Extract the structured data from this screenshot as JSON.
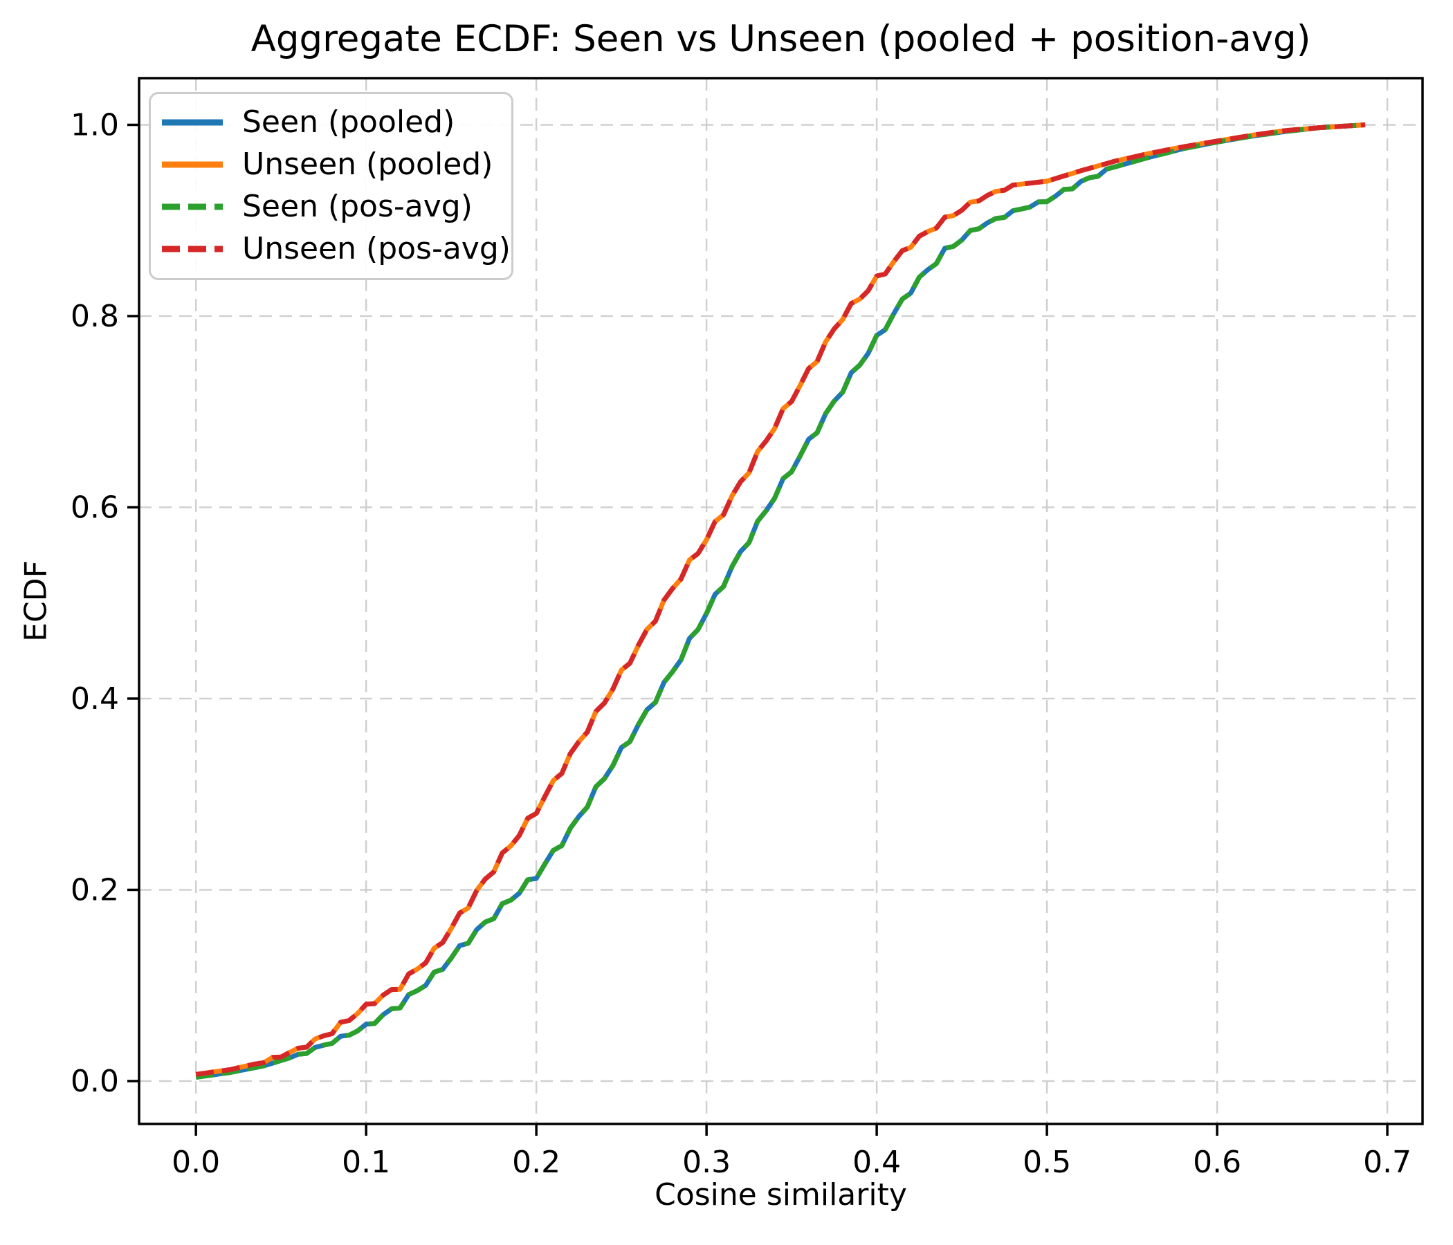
{
  "figure": {
    "title": "Aggregate ECDF: Seen vs Unseen (pooled + position-avg)",
    "xlabel": "Cosine similarity",
    "ylabel": "ECDF"
  },
  "chart_data": {
    "type": "line",
    "title": "Aggregate ECDF: Seen vs Unseen (pooled + position-avg)",
    "xlabel": "Cosine similarity",
    "ylabel": "ECDF",
    "xlim": [
      -0.0334,
      0.7207
    ],
    "ylim": [
      -0.0448,
      1.0488
    ],
    "x_ticks": [
      0.0,
      0.1,
      0.2,
      0.3,
      0.4,
      0.5,
      0.6,
      0.7
    ],
    "x_tick_labels": [
      "0.0",
      "0.1",
      "0.2",
      "0.3",
      "0.4",
      "0.5",
      "0.6",
      "0.7"
    ],
    "y_ticks": [
      0.0,
      0.2,
      0.4,
      0.6,
      0.8,
      1.0
    ],
    "y_tick_labels": [
      "0.0",
      "0.2",
      "0.4",
      "0.6",
      "0.8",
      "1.0"
    ],
    "grid": true,
    "grid_color": "#cccccc",
    "legend_position": "upper left",
    "x": [
      0.0,
      0.02,
      0.04,
      0.06,
      0.08,
      0.1,
      0.12,
      0.14,
      0.16,
      0.18,
      0.2,
      0.22,
      0.24,
      0.26,
      0.28,
      0.3,
      0.32,
      0.34,
      0.36,
      0.38,
      0.4,
      0.42,
      0.44,
      0.46,
      0.48,
      0.5,
      0.52,
      0.54,
      0.56,
      0.58,
      0.6,
      0.62,
      0.64,
      0.66,
      0.687
    ],
    "series": [
      {
        "name": "Seen (pooled)",
        "color": "#1f77b4",
        "style": "solid",
        "values": [
          0.004,
          0.009,
          0.016,
          0.027,
          0.041,
          0.057,
          0.08,
          0.11,
          0.148,
          0.182,
          0.215,
          0.262,
          0.318,
          0.372,
          0.428,
          0.49,
          0.552,
          0.612,
          0.668,
          0.724,
          0.776,
          0.828,
          0.868,
          0.893,
          0.909,
          0.921,
          0.94,
          0.956,
          0.966,
          0.975,
          0.982,
          0.988,
          0.993,
          0.997,
          1.0
        ]
      },
      {
        "name": "Unseen (pooled)",
        "color": "#ff7f0e",
        "style": "solid",
        "values": [
          0.007,
          0.012,
          0.02,
          0.033,
          0.052,
          0.078,
          0.1,
          0.135,
          0.185,
          0.235,
          0.283,
          0.34,
          0.397,
          0.455,
          0.515,
          0.567,
          0.625,
          0.685,
          0.742,
          0.8,
          0.838,
          0.875,
          0.901,
          0.922,
          0.937,
          0.941,
          0.952,
          0.962,
          0.97,
          0.977,
          0.983,
          0.989,
          0.994,
          0.997,
          1.0
        ]
      },
      {
        "name": "Seen (pos-avg)",
        "color": "#2ca02c",
        "style": "dashed",
        "values": [
          0.004,
          0.009,
          0.016,
          0.027,
          0.041,
          0.057,
          0.08,
          0.11,
          0.148,
          0.182,
          0.215,
          0.262,
          0.318,
          0.372,
          0.428,
          0.49,
          0.552,
          0.612,
          0.668,
          0.724,
          0.776,
          0.828,
          0.868,
          0.893,
          0.909,
          0.921,
          0.94,
          0.956,
          0.966,
          0.975,
          0.982,
          0.988,
          0.993,
          0.997,
          1.0
        ]
      },
      {
        "name": "Unseen (pos-avg)",
        "color": "#d62728",
        "style": "dashed",
        "values": [
          0.007,
          0.012,
          0.02,
          0.033,
          0.052,
          0.078,
          0.1,
          0.135,
          0.185,
          0.235,
          0.283,
          0.34,
          0.397,
          0.455,
          0.515,
          0.567,
          0.625,
          0.685,
          0.742,
          0.8,
          0.838,
          0.875,
          0.901,
          0.922,
          0.937,
          0.941,
          0.952,
          0.962,
          0.97,
          0.977,
          0.983,
          0.989,
          0.994,
          0.997,
          1.0
        ]
      }
    ]
  }
}
